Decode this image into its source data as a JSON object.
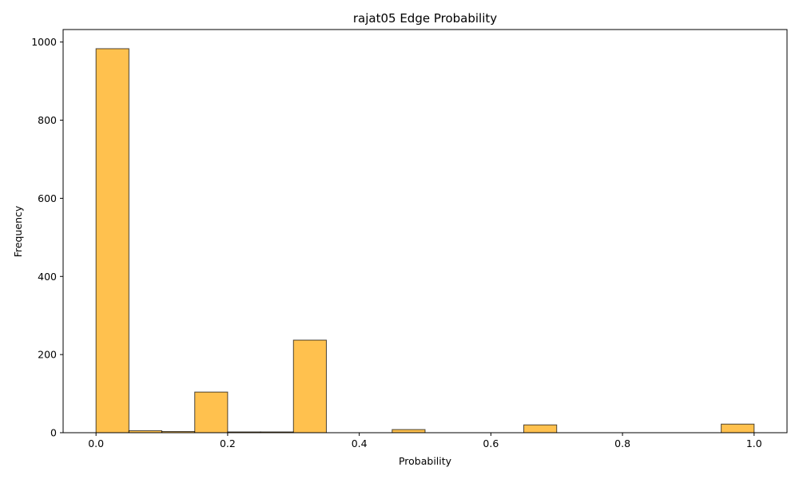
{
  "chart_data": {
    "type": "bar",
    "title": "rajat05 Edge Probability",
    "xlabel": "Probability",
    "ylabel": "Frequency",
    "xlim": [
      -0.05,
      1.05
    ],
    "ylim": [
      0,
      1032
    ],
    "x_ticks": [
      0.0,
      0.2,
      0.4,
      0.6,
      0.8,
      1.0
    ],
    "x_tick_labels": [
      "0.0",
      "0.2",
      "0.4",
      "0.6",
      "0.8",
      "1.0"
    ],
    "y_ticks": [
      0,
      200,
      400,
      600,
      800,
      1000
    ],
    "y_tick_labels": [
      "0",
      "200",
      "400",
      "600",
      "800",
      "1000"
    ],
    "bin_edges": [
      0.0,
      0.05,
      0.1,
      0.15,
      0.2,
      0.25,
      0.3,
      0.35,
      0.4,
      0.45,
      0.5,
      0.55,
      0.6,
      0.65,
      0.7,
      0.75,
      0.8,
      0.85,
      0.9,
      0.95,
      1.0
    ],
    "values": [
      983,
      5,
      3,
      104,
      2,
      2,
      237,
      0,
      0,
      8,
      0,
      0,
      0,
      20,
      0,
      0,
      0,
      0,
      0,
      22
    ],
    "bar_color": "#ffb327",
    "edge_color": "#000000",
    "grid": false,
    "legend": false
  }
}
